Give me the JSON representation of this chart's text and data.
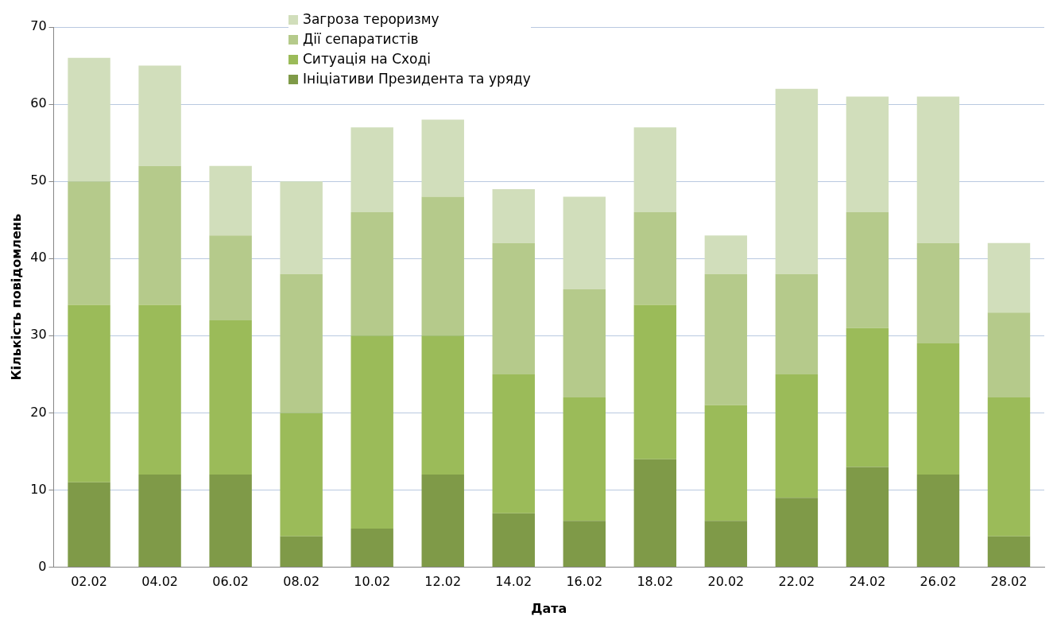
{
  "chart_data": {
    "type": "bar",
    "stacked": true,
    "xlabel": "Дата",
    "ylabel": "Кількість повідомлень",
    "categories": [
      "02.02",
      "04.02",
      "06.02",
      "08.02",
      "10.02",
      "12.02",
      "14.02",
      "16.02",
      "18.02",
      "20.02",
      "22.02",
      "24.02",
      "26.02",
      "28.02"
    ],
    "series": [
      {
        "name": "Ініціативи Президента та уряду",
        "color": "#7f9a48",
        "values": [
          11,
          12,
          12,
          4,
          5,
          12,
          7,
          6,
          14,
          6,
          9,
          13,
          12,
          4
        ]
      },
      {
        "name": "Ситуація на Сході",
        "color": "#9bbb59",
        "values": [
          23,
          22,
          20,
          16,
          25,
          18,
          18,
          16,
          20,
          15,
          16,
          18,
          17,
          18
        ]
      },
      {
        "name": "Дії сепаратистів",
        "color": "#b5ca8b",
        "values": [
          16,
          18,
          11,
          18,
          16,
          18,
          17,
          14,
          12,
          17,
          13,
          15,
          13,
          11
        ]
      },
      {
        "name": "Загроза тероризму",
        "color": "#d1debb",
        "values": [
          16,
          13,
          9,
          12,
          11,
          10,
          7,
          12,
          11,
          5,
          24,
          15,
          19,
          9
        ]
      }
    ],
    "ylim": [
      0,
      70
    ],
    "yticks": [
      0,
      10,
      20,
      30,
      40,
      50,
      60,
      70
    ],
    "grid": "y",
    "legend": "top"
  }
}
